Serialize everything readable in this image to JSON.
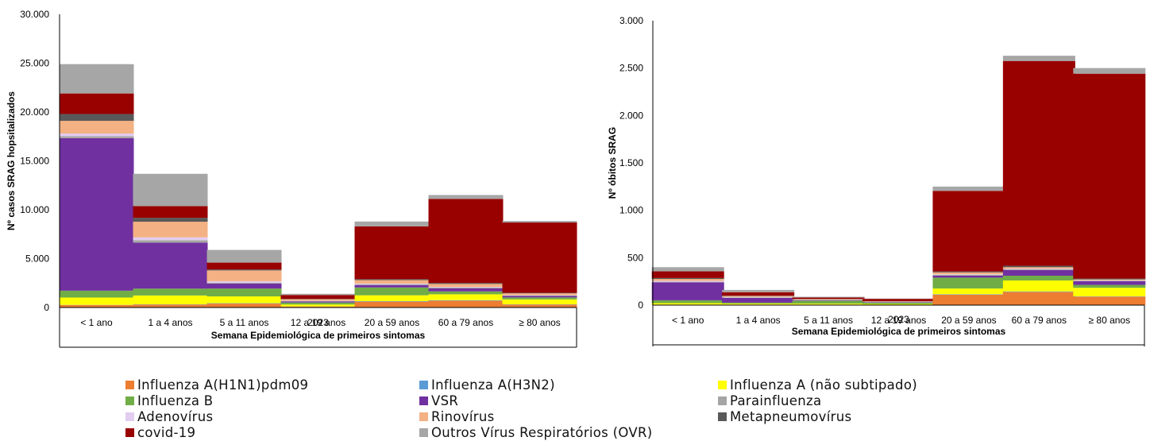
{
  "series_meta": [
    {
      "key": "h1n1",
      "name": "Influenza A(H1N1)pdm09",
      "color": "#ED7D31"
    },
    {
      "key": "h3n2",
      "name": "Influenza A(H3N2)",
      "color": "#5B9BD5"
    },
    {
      "key": "flua_ns",
      "name": "Influenza A (não subtipado)",
      "color": "#FFFF00"
    },
    {
      "key": "flub",
      "name": "Influenza B",
      "color": "#70AD47"
    },
    {
      "key": "vsr",
      "name": "VSR",
      "color": "#7030A0"
    },
    {
      "key": "parainf",
      "name": "Parainfluenza",
      "color": "#A5A5A5"
    },
    {
      "key": "adeno",
      "name": "Adenovírus",
      "color": "#E2CCEF"
    },
    {
      "key": "rino",
      "name": "Rinovírus",
      "color": "#F4B183"
    },
    {
      "key": "metapneumo",
      "name": "Metapneumovírus",
      "color": "#595959"
    },
    {
      "key": "covid",
      "name": "covid-19",
      "color": "#990000"
    },
    {
      "key": "ovr",
      "name": "Outros Vírus Respiratórios (OVR)",
      "color": "#A6A6A6"
    }
  ],
  "chart_data": [
    {
      "type": "bar",
      "stacked": true,
      "title": "",
      "ylabel": "Nº casos SRAG hopsitalizados",
      "xlabel": "Semana Epidemiológica de primeiros sintomas",
      "x_group_label": "2023",
      "ylim": [
        0,
        30000
      ],
      "yticks": [
        0,
        5000,
        10000,
        15000,
        20000,
        25000,
        30000
      ],
      "ytick_labels": [
        "0",
        "5.000",
        "10.000",
        "15.000",
        "20.000",
        "25.000",
        "30.000"
      ],
      "categories": [
        "< 1 ano",
        "1 a 4 anos",
        "5 a 11 anos",
        "12 a 19 anos",
        "20 a 59 anos",
        "60 a 79 anos",
        "≥ 80 anos"
      ],
      "series": [
        {
          "name": "Influenza A(H1N1)pdm09",
          "values": [
            250,
            300,
            400,
            100,
            600,
            700,
            300
          ]
        },
        {
          "name": "Influenza A(H3N2)",
          "values": [
            20,
            30,
            40,
            10,
            50,
            50,
            30
          ]
        },
        {
          "name": "Influenza A (não subtipado)",
          "values": [
            750,
            900,
            700,
            200,
            600,
            600,
            500
          ]
        },
        {
          "name": "Influenza B",
          "values": [
            700,
            700,
            800,
            200,
            800,
            300,
            200
          ]
        },
        {
          "name": "VSR",
          "values": [
            15600,
            4700,
            500,
            100,
            250,
            300,
            150
          ]
        },
        {
          "name": "Parainfluenza",
          "values": [
            200,
            250,
            100,
            40,
            80,
            100,
            60
          ]
        },
        {
          "name": "Adenovírus",
          "values": [
            280,
            300,
            150,
            40,
            70,
            60,
            30
          ]
        },
        {
          "name": "Rinovírus",
          "values": [
            1300,
            1600,
            1100,
            150,
            350,
            300,
            180
          ]
        },
        {
          "name": "Metapneumovírus",
          "values": [
            700,
            400,
            100,
            40,
            100,
            100,
            50
          ]
        },
        {
          "name": "covid-19",
          "values": [
            2100,
            1200,
            700,
            400,
            5400,
            8600,
            7200
          ]
        },
        {
          "name": "Outros Vírus Respiratórios (OVR)",
          "values": [
            3000,
            3300,
            1300,
            120,
            500,
            400,
            150
          ]
        }
      ]
    },
    {
      "type": "bar",
      "stacked": true,
      "title": "",
      "ylabel": "Nº óbitos SRAG",
      "xlabel": "Semana Epidemiológica de primeiros sintomas",
      "x_group_label": "2023",
      "ylim": [
        0,
        3000
      ],
      "yticks": [
        0,
        500,
        1000,
        1500,
        2000,
        2500,
        3000
      ],
      "ytick_labels": [
        "0",
        "500",
        "1.000",
        "1.500",
        "2.000",
        "2.500",
        "3.000"
      ],
      "categories": [
        "< 1 ano",
        "1 a 4 anos",
        "5 a 11 anos",
        "12 a 19 anos",
        "20 a 59 anos",
        "60 a 79 anos",
        "≥ 80 anos"
      ],
      "series": [
        {
          "name": "Influenza A(H1N1)pdm09",
          "values": [
            5,
            5,
            5,
            3,
            110,
            140,
            90
          ]
        },
        {
          "name": "Influenza A(H3N2)",
          "values": [
            1,
            1,
            1,
            1,
            5,
            5,
            3
          ]
        },
        {
          "name": "Influenza A (não subtipado)",
          "values": [
            15,
            10,
            10,
            8,
            60,
            115,
            90
          ]
        },
        {
          "name": "Influenza B",
          "values": [
            30,
            10,
            30,
            15,
            115,
            50,
            30
          ]
        },
        {
          "name": "VSR",
          "values": [
            190,
            50,
            5,
            5,
            20,
            60,
            40
          ]
        },
        {
          "name": "Parainfluenza",
          "values": [
            5,
            5,
            3,
            2,
            10,
            10,
            5
          ]
        },
        {
          "name": "Adenovírus",
          "values": [
            10,
            5,
            3,
            2,
            5,
            5,
            3
          ]
        },
        {
          "name": "Rinovírus",
          "values": [
            20,
            10,
            5,
            3,
            20,
            15,
            10
          ]
        },
        {
          "name": "Metapneumovírus",
          "values": [
            10,
            5,
            3,
            2,
            10,
            15,
            10
          ]
        },
        {
          "name": "covid-19",
          "values": [
            70,
            35,
            15,
            25,
            850,
            2160,
            2160
          ]
        },
        {
          "name": "Outros Vírus Respiratórios (OVR)",
          "values": [
            44,
            24,
            8,
            4,
            45,
            55,
            59
          ]
        }
      ]
    }
  ]
}
